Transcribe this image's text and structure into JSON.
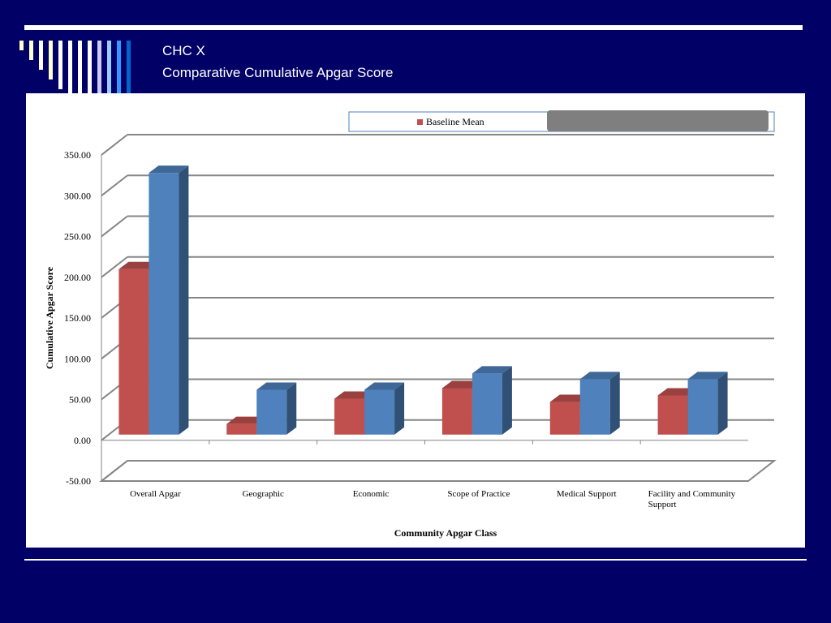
{
  "slide": {
    "title_line1": "CHC X",
    "title_line2": "Comparative Cumulative Apgar Score"
  },
  "colors": {
    "background": "#000066",
    "baseline": "#c0504d",
    "series2": "#4f81bd",
    "legend_redaction": "#7f7f7f"
  },
  "chart_data": {
    "type": "bar",
    "style": "3d-clustered-column",
    "title": "",
    "xlabel": "Community Apgar Class",
    "ylabel": "Cumulative Apgar Score",
    "ylim": [
      -50,
      350
    ],
    "yticks": [
      "350.00",
      "300.00",
      "250.00",
      "200.00",
      "150.00",
      "100.00",
      "50.00",
      "0.00",
      "-50.00"
    ],
    "ytick_values": [
      350,
      300,
      250,
      200,
      150,
      100,
      50,
      0,
      -50
    ],
    "grid": true,
    "legend_position": "top",
    "categories": [
      "Overall Apgar",
      "Geographic",
      "Economic",
      "Scope of Practice",
      "Medical Support",
      "Facility and Community Support"
    ],
    "series": [
      {
        "name": "Baseline Mean",
        "color": "#c0504d",
        "values": [
          203,
          13,
          44,
          57,
          40,
          48
        ]
      },
      {
        "color": "#4f81bd",
        "values": [
          321,
          55,
          55,
          75,
          68,
          68
        ]
      }
    ]
  }
}
